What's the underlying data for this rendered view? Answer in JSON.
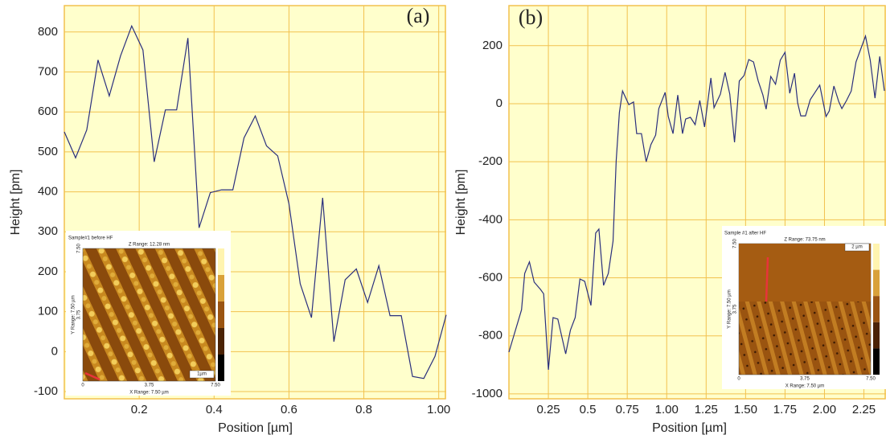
{
  "chart_data": [
    {
      "type": "line",
      "panel_label": "(a)",
      "xlabel": "Position [µm]",
      "ylabel": "Height [pm]",
      "color": "#2a2f7d",
      "background": "#ffffcc",
      "grid_color": "#f2c14e",
      "grid": true,
      "xlim": [
        0,
        1.02
      ],
      "ylim": [
        -118,
        866
      ],
      "xticks": [
        0.2,
        0.4,
        0.6,
        0.8,
        {
          "value": 1,
          "label": "1.00"
        }
      ],
      "yticks": [
        -100,
        0,
        100,
        200,
        300,
        400,
        500,
        600,
        700,
        800
      ],
      "x": [
        0,
        0.03,
        0.06,
        0.09,
        0.12,
        0.15,
        0.18,
        0.21,
        0.24,
        0.27,
        0.3,
        0.33,
        0.36,
        0.39,
        0.42,
        0.45,
        0.48,
        0.51,
        0.54,
        0.57,
        0.6,
        0.63,
        0.66,
        0.69,
        0.72,
        0.75,
        0.78,
        0.81,
        0.84,
        0.87,
        0.9,
        0.93,
        0.96,
        0.99,
        1.02
      ],
      "values": [
        550,
        485,
        555,
        730,
        640,
        740,
        815,
        755,
        475,
        605,
        605,
        785,
        310,
        398,
        405,
        405,
        535,
        590,
        515,
        490,
        370,
        170,
        85,
        385,
        25,
        180,
        207,
        123,
        215,
        90,
        90,
        -62,
        -67,
        -12,
        92
      ],
      "inset": {
        "title": "Sample#1 before HF",
        "z_range": "Z Range: 12.28 nm",
        "x_range": "X Range: 7.50 µm",
        "y_range": "Y Range: 7.50 µm",
        "scale": "1µm",
        "xtick_labels": [
          "0",
          "3.75",
          "7.50"
        ],
        "ytick_labels": [
          "3.75",
          "7.50"
        ]
      }
    },
    {
      "type": "line",
      "panel_label": "(b)",
      "xlabel": "Position [µm]",
      "ylabel": "Height [pm]",
      "color": "#2a2f7d",
      "background": "#ffffcc",
      "grid_color": "#f2c14e",
      "grid": true,
      "xlim": [
        0,
        2.39
      ],
      "ylim": [
        -1017,
        338
      ],
      "xticks": [
        0.25,
        0.5,
        0.75,
        {
          "value": 1,
          "label": "1.00"
        },
        1.25,
        {
          "value": 1.5,
          "label": "1.50"
        },
        1.75,
        {
          "value": 2,
          "label": "2.00"
        },
        2.25
      ],
      "yticks": [
        -1000,
        -800,
        -600,
        -400,
        -200,
        0,
        200
      ],
      "x": [
        0,
        0.08,
        0.1,
        0.13,
        0.16,
        0.2,
        0.22,
        0.25,
        0.28,
        0.31,
        0.36,
        0.39,
        0.42,
        0.45,
        0.48,
        0.52,
        0.55,
        0.57,
        0.6,
        0.63,
        0.66,
        0.68,
        0.7,
        0.72,
        0.76,
        0.79,
        0.81,
        0.84,
        0.87,
        0.9,
        0.93,
        0.95,
        0.99,
        1.01,
        1.04,
        1.07,
        1.1,
        1.12,
        1.15,
        1.18,
        1.21,
        1.24,
        1.28,
        1.3,
        1.34,
        1.37,
        1.4,
        1.43,
        1.46,
        1.49,
        1.52,
        1.55,
        1.58,
        1.61,
        1.63,
        1.66,
        1.69,
        1.72,
        1.75,
        1.78,
        1.81,
        1.83,
        1.85,
        1.88,
        1.91,
        1.94,
        1.97,
        2.01,
        2.03,
        2.06,
        2.09,
        2.11,
        2.14,
        2.17,
        2.2,
        2.26,
        2.29,
        2.32,
        2.35,
        2.38
      ],
      "values": [
        -856,
        -710,
        -585,
        -545,
        -615,
        -640,
        -655,
        -917,
        -737,
        -742,
        -862,
        -780,
        -737,
        -604,
        -612,
        -695,
        -446,
        -432,
        -626,
        -585,
        -474,
        -197,
        -30,
        44,
        -3,
        6,
        -103,
        -103,
        -200,
        -141,
        -108,
        -17,
        39,
        -44,
        -103,
        30,
        -103,
        -53,
        -47,
        -72,
        11,
        -80,
        89,
        -14,
        33,
        108,
        33,
        -133,
        78,
        97,
        152,
        144,
        78,
        30,
        -19,
        94,
        67,
        150,
        177,
        36,
        105,
        3,
        -42,
        -42,
        14,
        39,
        64,
        -44,
        -25,
        61,
        8,
        -17,
        11,
        44,
        144,
        233,
        150,
        19,
        163,
        44
      ],
      "inset": {
        "title": "Sample #1 after HF",
        "z_range": "Z Range: 73.75 nm",
        "x_range": "X Range: 7.50 µm",
        "y_range": "Y Range: 7.50 µm",
        "scale": "2 µm",
        "xtick_labels": [
          "0",
          "3.75",
          "7.50"
        ],
        "ytick_labels": [
          "3.75",
          "7.50"
        ]
      }
    }
  ]
}
